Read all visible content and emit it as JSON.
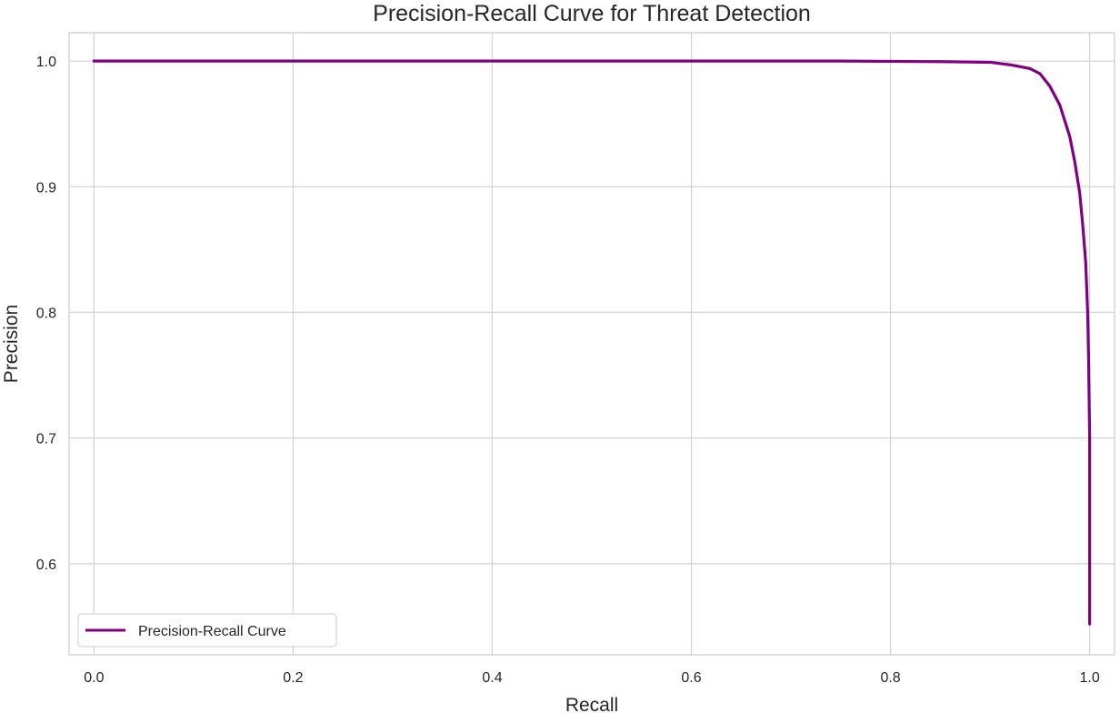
{
  "chart_data": {
    "type": "line",
    "title": "Precision-Recall Curve for Threat Detection",
    "xlabel": "Recall",
    "ylabel": "Precision",
    "xlim": [
      -0.025,
      1.025
    ],
    "ylim": [
      0.5275,
      1.0225
    ],
    "xticks": [
      0.0,
      0.2,
      0.4,
      0.6,
      0.8,
      1.0
    ],
    "xtick_labels": [
      "0.0",
      "0.2",
      "0.4",
      "0.6",
      "0.8",
      "1.0"
    ],
    "yticks": [
      0.6,
      0.7,
      0.8,
      0.9,
      1.0
    ],
    "ytick_labels": [
      "0.6",
      "0.7",
      "0.8",
      "0.9",
      "1.0"
    ],
    "grid": true,
    "legend_position": "lower-left",
    "series": [
      {
        "name": "Precision-Recall Curve",
        "color": "#800080",
        "x": [
          0.0,
          0.2,
          0.4,
          0.6,
          0.75,
          0.85,
          0.9,
          0.92,
          0.94,
          0.95,
          0.96,
          0.97,
          0.98,
          0.985,
          0.99,
          0.993,
          0.996,
          0.998,
          0.999,
          1.0,
          1.0
        ],
        "y": [
          1.0,
          1.0,
          1.0,
          1.0,
          1.0,
          0.9995,
          0.999,
          0.997,
          0.994,
          0.99,
          0.98,
          0.965,
          0.94,
          0.92,
          0.895,
          0.87,
          0.84,
          0.8,
          0.76,
          0.7,
          0.552
        ]
      }
    ]
  }
}
